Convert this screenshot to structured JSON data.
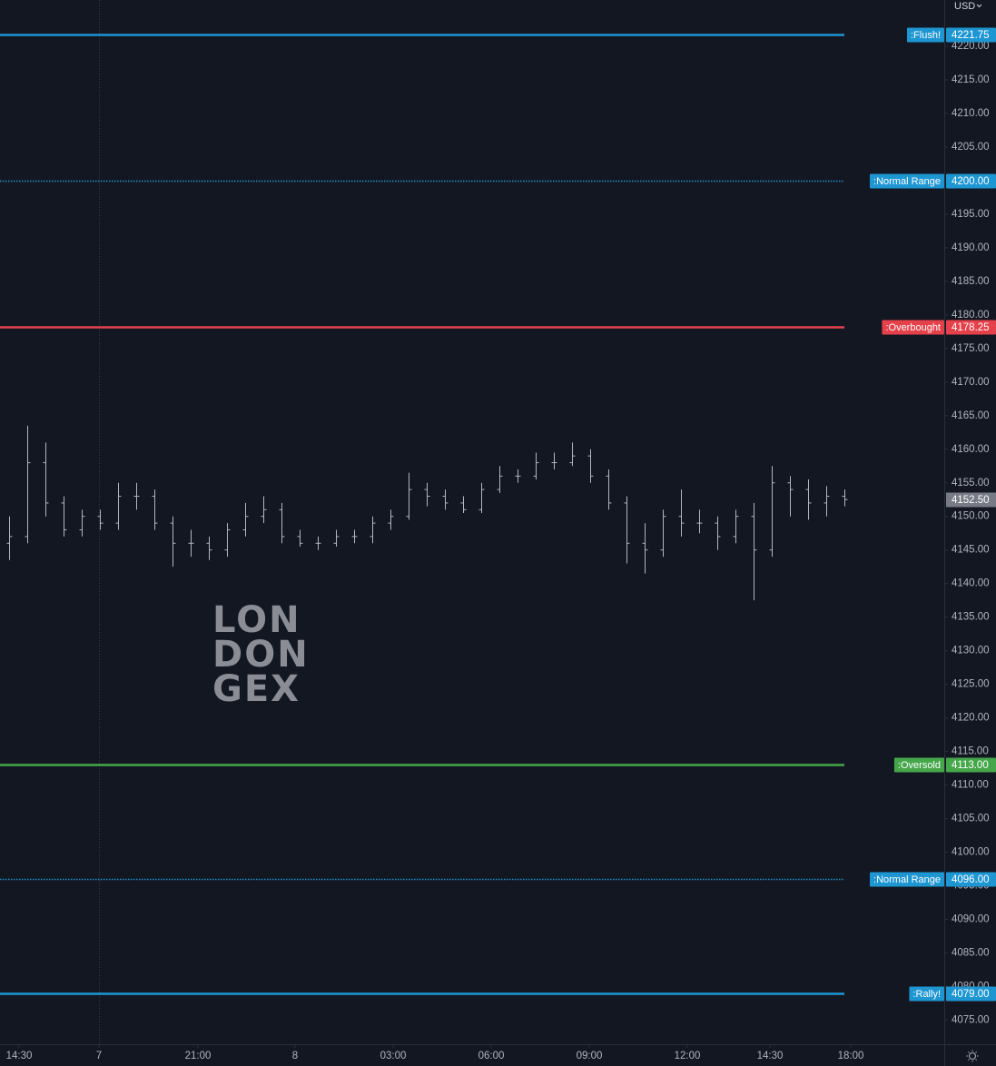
{
  "chart_data": {
    "type": "ohlc",
    "currency": "USD",
    "watermark": [
      "LON",
      "DON",
      "GEX"
    ],
    "color": "#b2b5be",
    "bars": {
      "open": [
        4146,
        4147,
        4158,
        4152,
        4148,
        4150,
        4149,
        4153,
        4153,
        4149,
        4146,
        4146,
        4145,
        4148,
        4150,
        4151,
        4147,
        4146,
        4146,
        4147,
        4147,
        4149,
        4150,
        4154,
        4153,
        4152,
        4151,
        4154,
        4156,
        4156,
        4158,
        4158,
        4159,
        4156,
        4152,
        4146,
        4145,
        4150,
        4149,
        4149,
        4147,
        4150,
        4145,
        4155,
        4154,
        4152,
        4153
      ],
      "high": [
        4150,
        4163.5,
        4161,
        4153,
        4151,
        4151,
        4155,
        4155,
        4154,
        4150,
        4148,
        4147,
        4149,
        4152,
        4153,
        4152,
        4148,
        4147,
        4148,
        4148,
        4150,
        4151,
        4156.5,
        4155,
        4154,
        4153,
        4155,
        4157.5,
        4157,
        4159.5,
        4159.5,
        4161,
        4160,
        4157,
        4153,
        4149,
        4151,
        4154,
        4151,
        4150,
        4151,
        4152,
        4157.5,
        4156,
        4155.5,
        4154.5,
        4154
      ],
      "low": [
        4143.5,
        4146,
        4150,
        4147,
        4147,
        4148,
        4148,
        4151,
        4148,
        4142.5,
        4144,
        4143.5,
        4144,
        4147,
        4149,
        4146,
        4145.5,
        4145,
        4145.5,
        4146,
        4146,
        4148,
        4149.5,
        4151.5,
        4151,
        4150.5,
        4150.5,
        4153.5,
        4155,
        4155.5,
        4157,
        4157.5,
        4155,
        4151,
        4143,
        4141.5,
        4144,
        4147,
        4147.5,
        4145,
        4146,
        4137.5,
        4144,
        4150,
        4149.5,
        4150,
        4151.5
      ],
      "close": [
        4147,
        4158,
        4152,
        4148,
        4150,
        4149,
        4153,
        4153,
        4149,
        4146,
        4146,
        4145,
        4148,
        4150,
        4151,
        4147,
        4146,
        4146,
        4147,
        4147,
        4149,
        4150,
        4154,
        4153,
        4152,
        4151,
        4154,
        4156,
        4156,
        4158,
        4158,
        4159,
        4156,
        4152,
        4146,
        4145,
        4150,
        4149,
        4149,
        4147,
        4150,
        4145,
        4155,
        4154,
        4152,
        4153,
        4152.5
      ]
    },
    "xlim": [
      -0.5,
      51.5
    ],
    "xticks": [
      {
        "value": 0.55,
        "label": "14:30"
      },
      {
        "value": 4.95,
        "label": "7"
      },
      {
        "value": 10.4,
        "label": "21:00"
      },
      {
        "value": 15.75,
        "label": "8"
      },
      {
        "value": 21.15,
        "label": "03:00"
      },
      {
        "value": 26.55,
        "label": "06:00"
      },
      {
        "value": 31.95,
        "label": "09:00"
      },
      {
        "value": 37.35,
        "label": "12:00"
      },
      {
        "value": 41.9,
        "label": "14:30"
      },
      {
        "value": 46.35,
        "label": "18:00"
      }
    ],
    "ylim": [
      4071.4,
      4226.9
    ],
    "yticks": [
      {
        "value": 4075,
        "label": "4075.00"
      },
      {
        "value": 4080,
        "label": "4080.00"
      },
      {
        "value": 4085,
        "label": "4085.00"
      },
      {
        "value": 4090,
        "label": "4090.00"
      },
      {
        "value": 4095,
        "label": "4095.00"
      },
      {
        "value": 4100,
        "label": "4100.00"
      },
      {
        "value": 4105,
        "label": "4105.00"
      },
      {
        "value": 4110,
        "label": "4110.00"
      },
      {
        "value": 4115,
        "label": "4115.00"
      },
      {
        "value": 4120,
        "label": "4120.00"
      },
      {
        "value": 4125,
        "label": "4125.00"
      },
      {
        "value": 4130,
        "label": "4130.00"
      },
      {
        "value": 4135,
        "label": "4135.00"
      },
      {
        "value": 4140,
        "label": "4140.00"
      },
      {
        "value": 4145,
        "label": "4145.00"
      },
      {
        "value": 4150,
        "label": "4150.00"
      },
      {
        "value": 4155,
        "label": "4155.00"
      },
      {
        "value": 4160,
        "label": "4160.00"
      },
      {
        "value": 4165,
        "label": "4165.00"
      },
      {
        "value": 4170,
        "label": "4170.00"
      },
      {
        "value": 4175,
        "label": "4175.00"
      },
      {
        "value": 4180,
        "label": "4180.00"
      },
      {
        "value": 4185,
        "label": "4185.00"
      },
      {
        "value": 4190,
        "label": "4190.00"
      },
      {
        "value": 4195,
        "label": "4195.00"
      },
      {
        "value": 4200,
        "label": "4200.00"
      },
      {
        "value": 4205,
        "label": "4205.00"
      },
      {
        "value": 4210,
        "label": "4210.00"
      },
      {
        "value": 4215,
        "label": "4215.00"
      },
      {
        "value": 4220,
        "label": "4220.00"
      }
    ],
    "levels": [
      {
        "name": ":Flush!",
        "value": 4221.75,
        "value_label": "4221.75",
        "color": "#1e96d2",
        "dashed": false
      },
      {
        "name": ":Normal Range",
        "value": 4200,
        "value_label": "4200.00",
        "color": "#1e96d2",
        "dashed": true
      },
      {
        "name": ":Overbought",
        "value": 4178.25,
        "value_label": "4178.25",
        "color": "#e5414b",
        "dashed": false
      },
      {
        "name": ":Oversold",
        "value": 4113,
        "value_label": "4113.00",
        "color": "#45a74a",
        "dashed": false
      },
      {
        "name": ":Normal Range",
        "value": 4096,
        "value_label": "4096.00",
        "color": "#1e96d2",
        "dashed": true
      },
      {
        "name": ":Rally!",
        "value": 4079,
        "value_label": "4079.00",
        "color": "#1e96d2",
        "dashed": false
      }
    ],
    "last_price": {
      "value": 4152.5,
      "label": "4152.50"
    }
  }
}
